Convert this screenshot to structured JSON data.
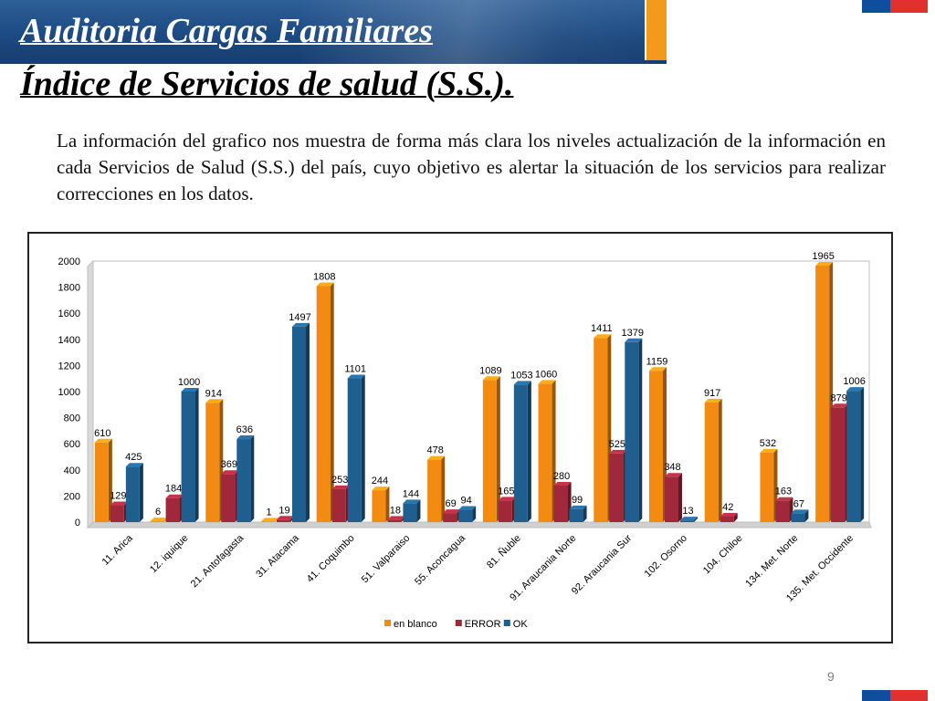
{
  "slide": {
    "title": "Auditoria Cargas Familiares",
    "subtitle": "Índice de Servicios de salud (S.S.).",
    "body": "La información del grafico nos muestra de forma más clara los niveles actualización de la información en cada Servicios de Salud (S.S.) del país, cuyo objetivo es alertar la situación de los servicios para realizar correcciones en los datos.",
    "page_number": "9"
  },
  "colors": {
    "banner": "#1c4a82",
    "accent_orange": "#f39a1d",
    "flag_blue": "#0f4e9c",
    "flag_red": "#e0302f"
  },
  "chart_data": {
    "type": "bar",
    "categories": [
      "11. Arica",
      "12. iquique",
      "21. Antofagasta",
      "31. Atacama",
      "41. Coquimbo",
      "51. Valparaiso",
      "55. Aconcagua",
      "81. Ñuble",
      "91. Araucania Norte",
      "92. Araucania Sur",
      "102. Osorno",
      "104. Chiloe",
      "134. Met. Norte",
      "135. Met. Occidente"
    ],
    "series": [
      {
        "name": "en blanco",
        "color": "#f38a12",
        "values": [
          610,
          6,
          914,
          1,
          1808,
          244,
          478,
          1089,
          1060,
          1411,
          1159,
          917,
          532,
          1965
        ]
      },
      {
        "name": "ERROR",
        "color": "#a0283a",
        "values": [
          129,
          184,
          369,
          19,
          253,
          18,
          69,
          165,
          280,
          525,
          348,
          42,
          163,
          879
        ]
      },
      {
        "name": "OK",
        "color": "#1f5f8f",
        "values": [
          425,
          1000,
          636,
          1497,
          1101,
          144,
          94,
          1053,
          99,
          1379,
          13,
          null,
          67,
          1006
        ]
      }
    ],
    "ylim": [
      0,
      2000
    ],
    "yticks": [
      0,
      200,
      400,
      600,
      800,
      1000,
      1200,
      1400,
      1600,
      1800,
      2000
    ],
    "grid": false,
    "legend": "bottom",
    "data_labels": true
  }
}
